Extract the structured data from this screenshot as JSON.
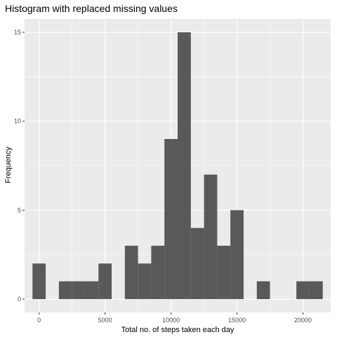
{
  "chart_data": {
    "type": "bar",
    "title": "Histogram with replaced missing values",
    "xlabel": "Total no. of steps taken each day",
    "ylabel": "Frequency",
    "bin_width": 1000,
    "bin_centers": [
      0,
      2000,
      3000,
      4000,
      5000,
      7000,
      8000,
      9000,
      10000,
      11000,
      12000,
      13000,
      14000,
      15000,
      17000,
      20000,
      21000
    ],
    "values": [
      2,
      1,
      1,
      1,
      2,
      3,
      2,
      3,
      9,
      15,
      4,
      7,
      3,
      5,
      1,
      1,
      1
    ],
    "xlim": [
      -1100,
      22100
    ],
    "ylim": [
      -0.75,
      15.75
    ],
    "x_ticks": [
      0,
      5000,
      10000,
      15000,
      20000
    ],
    "x_tick_labels": [
      "0",
      "5000",
      "10000",
      "15000",
      "20000"
    ],
    "y_ticks": [
      0,
      5,
      10,
      15
    ],
    "y_tick_labels": [
      "0",
      "5",
      "10",
      "15"
    ],
    "grid": true,
    "bar_color": "#595959",
    "panel_color": "#ebebeb",
    "grid_color": "#ffffff"
  }
}
